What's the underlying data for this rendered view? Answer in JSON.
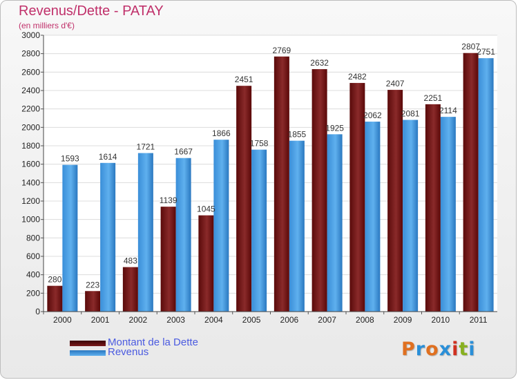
{
  "header": {
    "title": "Revenus/Dette - PATAY",
    "subtitle": "(en milliers d'€)"
  },
  "legend": [
    {
      "label": "Montant de la Dette",
      "color": "#7a1a1a"
    },
    {
      "label": "Revenus",
      "color": "#4d9fe0"
    }
  ],
  "logo": {
    "text": "Proxiti",
    "colors": [
      "#e07020",
      "#2a8fd8",
      "#e07020",
      "#2a8fd8",
      "#d03020",
      "#88b020",
      "#2a8fd8"
    ]
  },
  "chart_data": {
    "type": "bar",
    "categories": [
      "2000",
      "2001",
      "2002",
      "2003",
      "2004",
      "2005",
      "2006",
      "2007",
      "2008",
      "2009",
      "2010",
      "2011"
    ],
    "series": [
      {
        "name": "Montant de la Dette",
        "values": [
          280,
          223,
          483,
          1139,
          1045,
          2451,
          2769,
          2632,
          2482,
          2407,
          2251,
          2807
        ],
        "color": "#7a1a1a"
      },
      {
        "name": "Revenus",
        "values": [
          1593,
          1614,
          1721,
          1667,
          1866,
          1758,
          1855,
          1925,
          2062,
          2081,
          2114,
          2751
        ],
        "color": "#4d9fe0"
      }
    ],
    "yticks": [
      "0",
      "200",
      "400",
      "600",
      "800",
      "1000",
      "1200",
      "1400",
      "1600",
      "1800",
      "2000",
      "2200",
      "2400",
      "2600",
      "2800",
      "3000"
    ],
    "ylim": [
      0,
      3000
    ],
    "grid": true,
    "legend_position": "bottom-left"
  }
}
